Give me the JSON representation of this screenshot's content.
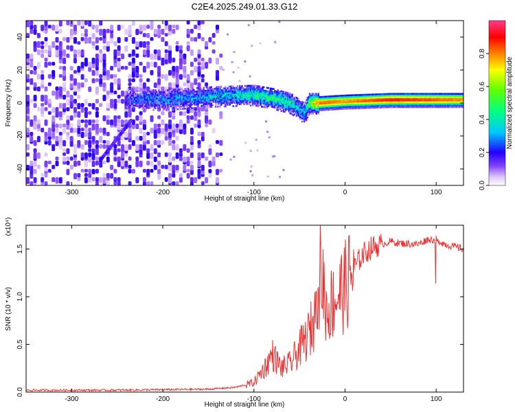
{
  "title": "C2E4.2025.249.01.33.G12",
  "chart_data": [
    {
      "type": "heatmap",
      "xlabel": "Height of straight line (km)",
      "ylabel": "Frequency (Hz)",
      "xlim": [
        -350,
        130
      ],
      "ylim": [
        -50,
        50
      ],
      "xticks": [
        -300,
        -200,
        -100,
        0,
        100
      ],
      "xtick_labels": [
        "-300",
        "-200",
        "-100",
        "0",
        "100"
      ],
      "yticks": [
        -40,
        -20,
        0,
        20,
        40
      ],
      "ytick_labels": [
        "-40",
        "-20",
        "0",
        "20",
        "40"
      ],
      "colorbar": {
        "label": "Normalized spectral amplitude",
        "range": [
          0,
          1
        ],
        "ticks": [
          0.0,
          0.2,
          0.4,
          0.6,
          0.8
        ],
        "tick_labels": [
          "0.0",
          "0.2",
          "0.4",
          "0.6",
          "0.8"
        ],
        "colors": [
          "#ffffff",
          "#c060ff",
          "#6000ff",
          "#0000ff",
          "#00ffff",
          "#00ff00",
          "#ffff00",
          "#ff8000",
          "#ff0000",
          "#ff3080"
        ]
      },
      "ridge": {
        "x": [
          -240,
          -200,
          -150,
          -100,
          -80,
          -60,
          -45,
          -40,
          -30,
          0,
          50,
          100,
          130
        ],
        "freq": [
          3,
          2,
          4,
          5,
          3,
          0,
          -6,
          0,
          0,
          1,
          2,
          2,
          2
        ],
        "amplitude": [
          0.2,
          0.25,
          0.3,
          0.4,
          0.45,
          0.4,
          0.3,
          0.5,
          0.85,
          0.8,
          0.9,
          0.85,
          0.8
        ]
      },
      "streak": {
        "x": [
          -270,
          -235
        ],
        "freq": [
          -35,
          -10
        ]
      }
    },
    {
      "type": "line",
      "xlabel": "Height of straight line (km)",
      "ylabel": "SNR (10 * v/v)",
      "yscale_label": "(x10⁴)",
      "xlim": [
        -350,
        130
      ],
      "ylim": [
        0,
        1.75
      ],
      "xticks": [
        -300,
        -200,
        -100,
        0,
        100
      ],
      "xtick_labels": [
        "-300",
        "-200",
        "-100",
        "0",
        "100"
      ],
      "yticks": [
        0.0,
        0.5,
        1.0,
        1.5
      ],
      "ytick_labels": [
        "0.0",
        "0.5",
        "1.0",
        "1.5"
      ],
      "series": [
        {
          "name": "SNR",
          "color": "#ee3030",
          "x": [
            -350,
            -250,
            -150,
            -120,
            -100,
            -85,
            -80,
            -70,
            -60,
            -50,
            -40,
            -30,
            -25,
            -20,
            -10,
            0,
            10,
            20,
            30,
            40,
            50,
            60,
            80,
            90,
            100,
            110,
            130
          ],
          "y": [
            0.02,
            0.02,
            0.03,
            0.05,
            0.1,
            0.3,
            0.4,
            0.25,
            0.3,
            0.45,
            0.6,
            0.85,
            1.2,
            0.85,
            1.0,
            1.1,
            1.3,
            1.45,
            1.52,
            1.55,
            1.58,
            1.56,
            1.55,
            1.6,
            1.6,
            1.55,
            1.5
          ]
        }
      ]
    }
  ]
}
